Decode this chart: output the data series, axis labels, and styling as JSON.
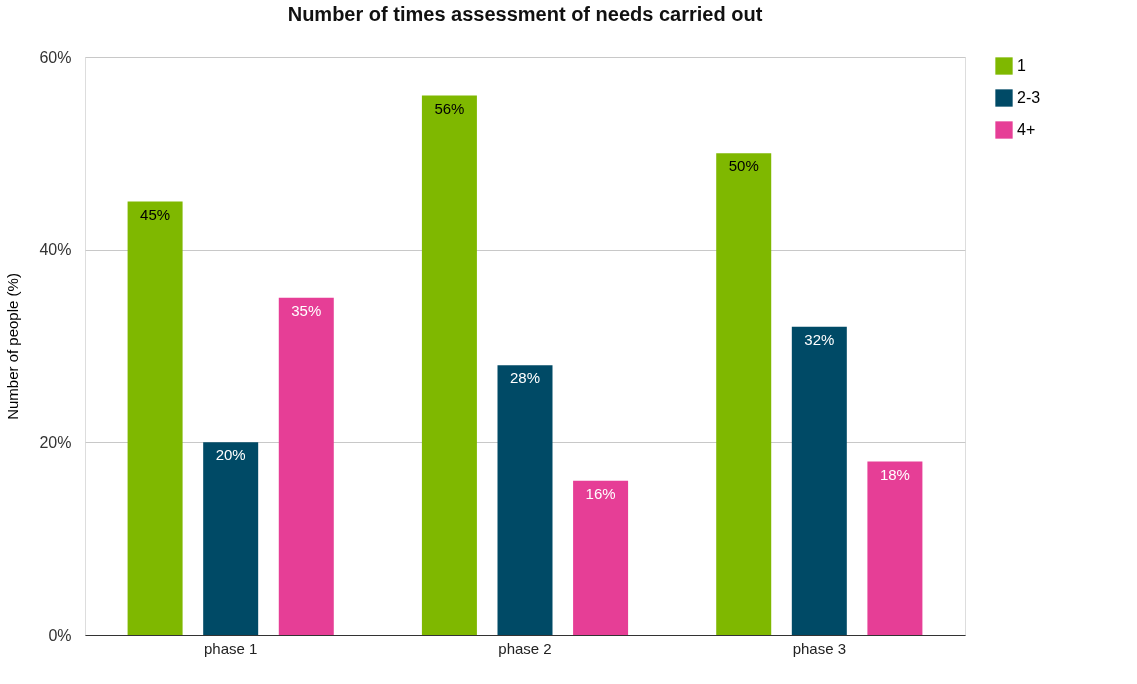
{
  "chart_data": {
    "type": "bar",
    "title": "Number of times assessment of needs carried out",
    "ylabel": "Number of people (%)",
    "categories": [
      "phase 1",
      "phase 2",
      "phase 3"
    ],
    "series": [
      {
        "name": "1",
        "color": "#7fb800",
        "values": [
          45,
          56,
          50
        ],
        "value_labels": [
          "45%",
          "56%",
          "50%"
        ]
      },
      {
        "name": "2-3",
        "color": "#004a66",
        "values": [
          20,
          28,
          32
        ],
        "value_labels": [
          "20%",
          "28%",
          "32%"
        ]
      },
      {
        "name": "4+",
        "color": "#e63e96",
        "values": [
          35,
          16,
          18
        ],
        "value_labels": [
          "35%",
          "16%",
          "18%"
        ]
      }
    ],
    "ylim": [
      0,
      60
    ],
    "yticks": [
      {
        "value": 0,
        "label": "0%"
      },
      {
        "value": 20,
        "label": "20%"
      },
      {
        "value": 40,
        "label": "40%"
      },
      {
        "value": 60,
        "label": "60%"
      }
    ],
    "grid": "y",
    "legend": "top right"
  }
}
